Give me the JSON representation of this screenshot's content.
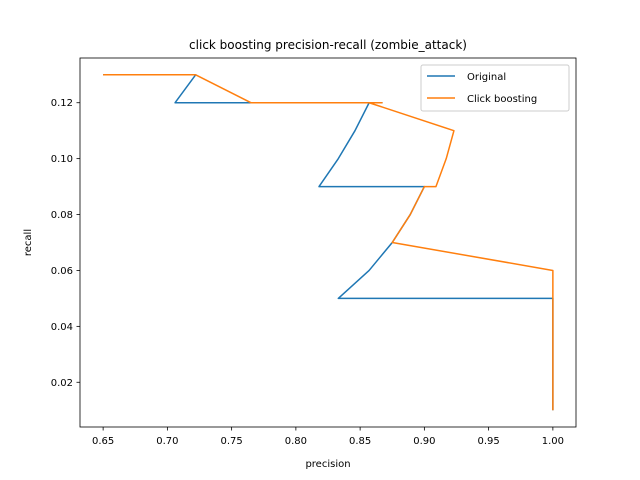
{
  "chart_data": {
    "type": "line",
    "title": "click boosting precision-recall (zombie_attack)",
    "xlabel": "precision",
    "ylabel": "recall",
    "xlim": [
      0.632,
      1.018
    ],
    "ylim": [
      0.004,
      0.136
    ],
    "xticks": [
      0.65,
      0.7,
      0.75,
      0.8,
      0.85,
      0.9,
      0.95,
      1.0
    ],
    "xtick_labels": [
      "0.65",
      "0.70",
      "0.75",
      "0.80",
      "0.85",
      "0.90",
      "0.95",
      "1.00"
    ],
    "yticks": [
      0.02,
      0.04,
      0.06,
      0.08,
      0.1,
      0.12
    ],
    "ytick_labels": [
      "0.02",
      "0.04",
      "0.06",
      "0.08",
      "0.10",
      "0.12"
    ],
    "grid": false,
    "legend_position": "top-right",
    "series": [
      {
        "name": "Original",
        "color": "#1f77b4",
        "points": [
          [
            1.0,
            0.01
          ],
          [
            1.0,
            0.02
          ],
          [
            1.0,
            0.03
          ],
          [
            1.0,
            0.04
          ],
          [
            1.0,
            0.05
          ],
          [
            0.833,
            0.05
          ],
          [
            0.857,
            0.06
          ],
          [
            0.875,
            0.07
          ],
          [
            0.889,
            0.08
          ],
          [
            0.9,
            0.09
          ],
          [
            0.818,
            0.09
          ],
          [
            0.833,
            0.1
          ],
          [
            0.846,
            0.11
          ],
          [
            0.857,
            0.12
          ],
          [
            0.867,
            0.12
          ],
          [
            0.706,
            0.12
          ],
          [
            0.722,
            0.13
          ],
          [
            0.65,
            0.13
          ]
        ]
      },
      {
        "name": "Click boosting",
        "color": "#ff7f0e",
        "points": [
          [
            1.0,
            0.01
          ],
          [
            1.0,
            0.02
          ],
          [
            1.0,
            0.03
          ],
          [
            1.0,
            0.04
          ],
          [
            1.0,
            0.05
          ],
          [
            1.0,
            0.06
          ],
          [
            0.875,
            0.07
          ],
          [
            0.889,
            0.08
          ],
          [
            0.9,
            0.09
          ],
          [
            0.909,
            0.09
          ],
          [
            0.917,
            0.1
          ],
          [
            0.923,
            0.11
          ],
          [
            0.857,
            0.12
          ],
          [
            0.867,
            0.12
          ],
          [
            0.765,
            0.12
          ],
          [
            0.722,
            0.13
          ],
          [
            0.65,
            0.13
          ]
        ]
      }
    ]
  }
}
